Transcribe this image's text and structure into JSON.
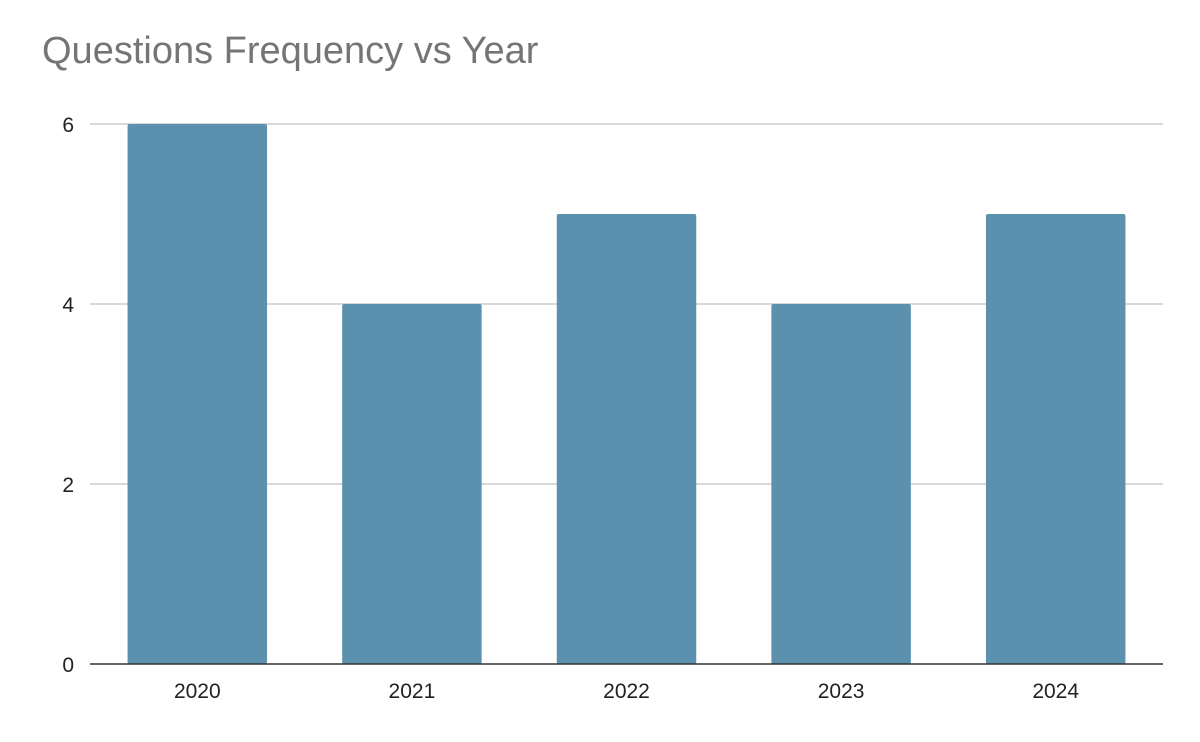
{
  "chart_data": {
    "type": "bar",
    "title": "Questions Frequency vs Year",
    "xlabel": "",
    "ylabel": "",
    "categories": [
      "2020",
      "2021",
      "2022",
      "2023",
      "2024"
    ],
    "values": [
      6,
      4,
      5,
      4,
      5
    ],
    "ylim": [
      0,
      6
    ],
    "yticks": [
      "0",
      "2",
      "4",
      "6"
    ],
    "grid": true,
    "legend": "none",
    "colors": {
      "bar": "#5b91ae",
      "grid": "#cccccc",
      "axis": "#333333",
      "title": "#757575"
    }
  }
}
